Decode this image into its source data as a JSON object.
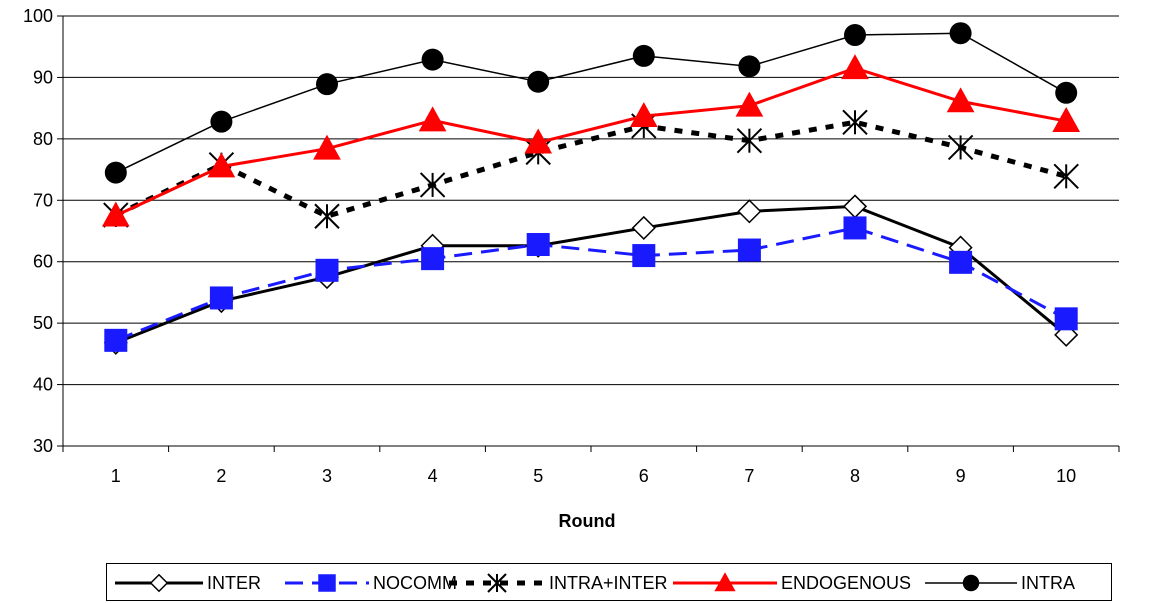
{
  "chart_data": {
    "type": "line",
    "title": "",
    "xlabel": "Round",
    "ylabel": "",
    "ylim": [
      30,
      100
    ],
    "yticks": [
      30,
      40,
      50,
      60,
      70,
      80,
      90,
      100
    ],
    "categories": [
      "1",
      "2",
      "3",
      "4",
      "5",
      "6",
      "7",
      "8",
      "9",
      "10"
    ],
    "grid": "horizontal",
    "legend_position": "bottom",
    "series": [
      {
        "name": "INTER",
        "color": "#000000",
        "dash": "solid",
        "marker": "diamond-open",
        "values": [
          46.8,
          53.6,
          57.5,
          62.6,
          62.6,
          65.5,
          68.2,
          69.0,
          62.3,
          48.1
        ]
      },
      {
        "name": "NOCOMM",
        "color": "#1a1aff",
        "dash": "dashed",
        "marker": "square-filled",
        "values": [
          47.2,
          54.1,
          58.6,
          60.5,
          62.8,
          61.0,
          61.9,
          65.5,
          59.9,
          50.7
        ]
      },
      {
        "name": "INTRA+INTER",
        "color": "#000000",
        "dash": "dotted-heavy",
        "marker": "asterisk",
        "values": [
          67.6,
          75.8,
          67.4,
          72.5,
          77.8,
          82.1,
          79.7,
          82.7,
          78.6,
          73.9
        ]
      },
      {
        "name": "ENDOGENOUS",
        "color": "#ff0000",
        "dash": "solid",
        "marker": "triangle-filled",
        "values": [
          67.5,
          75.5,
          78.4,
          83.0,
          79.4,
          83.7,
          85.4,
          91.5,
          86.1,
          82.9
        ]
      },
      {
        "name": "INTRA",
        "color": "#000000",
        "dash": "solid-thin",
        "marker": "circle-filled",
        "values": [
          74.5,
          82.8,
          88.9,
          92.9,
          89.3,
          93.5,
          91.8,
          96.9,
          97.2,
          87.5
        ]
      }
    ]
  }
}
